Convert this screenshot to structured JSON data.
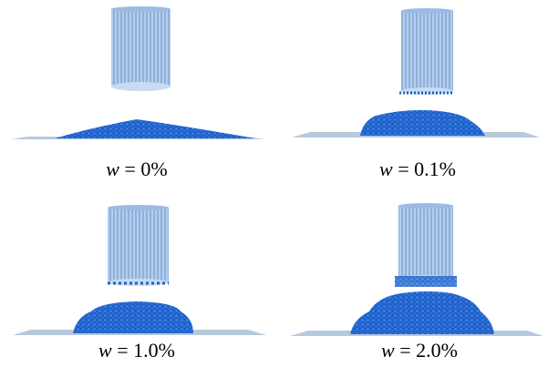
{
  "panels": [
    {
      "symbol": "w",
      "equals": "= 0%"
    },
    {
      "symbol": "w",
      "equals": "= 0.1%"
    },
    {
      "symbol": "w",
      "equals": "= 1.0%"
    },
    {
      "symbol": "w",
      "equals": "= 2.0%"
    }
  ]
}
